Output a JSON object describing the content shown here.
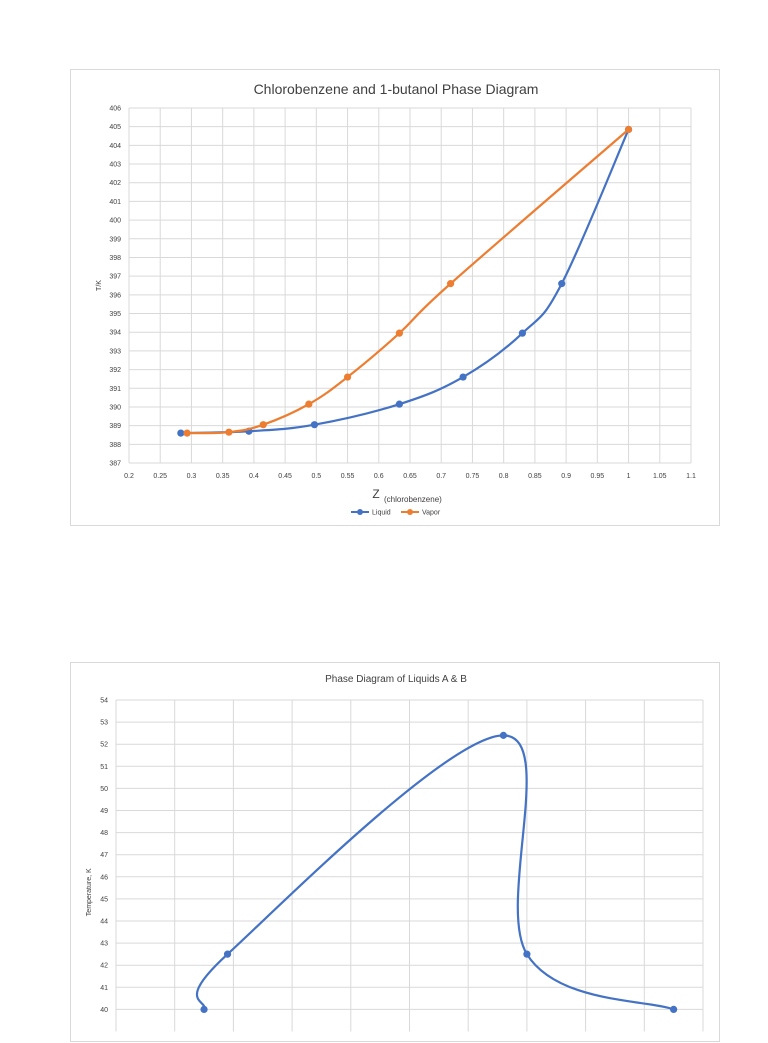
{
  "chart_data": [
    {
      "type": "line",
      "title": "Chlorobenzene and 1-butanol Phase Diagram",
      "ylabel": "T/K",
      "xlabel_main": "Z",
      "xlabel_sub": "(chlorobenzene)",
      "xlim": [
        0.2,
        1.1
      ],
      "ylim": [
        387,
        406
      ],
      "x_ticks": [
        "0.2",
        "0.25",
        "0.3",
        "0.35",
        "0.4",
        "0.45",
        "0.5",
        "0.55",
        "0.6",
        "0.65",
        "0.7",
        "0.75",
        "0.8",
        "0.85",
        "0.9",
        "0.95",
        "1",
        "1.05",
        "1.1"
      ],
      "y_ticks": [
        "387",
        "388",
        "389",
        "390",
        "391",
        "392",
        "393",
        "394",
        "395",
        "396",
        "397",
        "398",
        "399",
        "400",
        "401",
        "402",
        "403",
        "404",
        "405",
        "406"
      ],
      "grid": true,
      "legend_position": "bottom",
      "series": [
        {
          "name": "Liquid",
          "color": "#4472c4",
          "x": [
            0.283,
            0.392,
            0.497,
            0.633,
            0.735,
            0.83,
            0.893,
            1.0
          ],
          "y": [
            388.6,
            388.7,
            389.05,
            390.15,
            391.6,
            393.95,
            396.6,
            404.85
          ]
        },
        {
          "name": "Vapor",
          "color": "#ed7d31",
          "x": [
            0.293,
            0.36,
            0.415,
            0.488,
            0.55,
            0.633,
            0.715,
            1.0
          ],
          "y": [
            388.6,
            388.65,
            389.05,
            390.15,
            391.6,
            393.95,
            396.6,
            404.85
          ]
        }
      ]
    },
    {
      "type": "line",
      "title": "Phase Diagram of Liquids A & B",
      "ylabel": "Temperature, K",
      "ylim": [
        39,
        54
      ],
      "xlim": [
        0,
        1
      ],
      "y_ticks": [
        "40",
        "41",
        "42",
        "43",
        "44",
        "45",
        "46",
        "47",
        "48",
        "49",
        "50",
        "51",
        "52",
        "53",
        "54"
      ],
      "grid": true,
      "series": [
        {
          "color": "#4472c4",
          "x": [
            0.15,
            0.19,
            0.66,
            0.7,
            0.95
          ],
          "y": [
            40,
            42.5,
            52.4,
            42.5,
            40
          ]
        }
      ]
    }
  ]
}
